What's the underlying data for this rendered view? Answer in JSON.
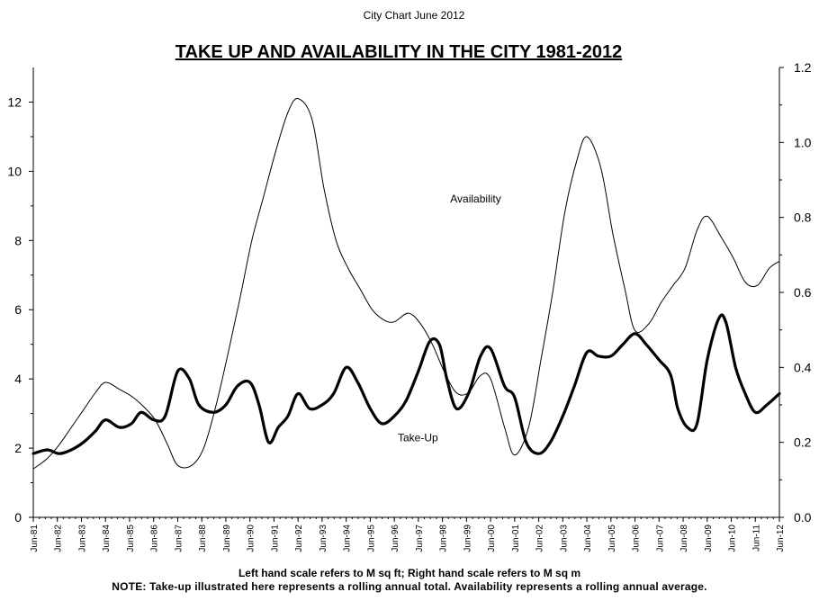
{
  "chart_header": "City Chart June 2012",
  "chart_data": {
    "type": "line",
    "title": "TAKE UP AND AVAILABILITY IN THE CITY 1981-2012",
    "y_left": {
      "ylim": [
        0,
        13
      ],
      "ticks": [
        0,
        2,
        4,
        6,
        8,
        10,
        12
      ]
    },
    "y_right": {
      "ylim": [
        0,
        1.2
      ],
      "ticks": [
        "0.0",
        "0.2",
        "0.4",
        "0.6",
        "0.8",
        "1.0",
        "1.2"
      ]
    },
    "x_range": [
      1981.42,
      2012.42
    ],
    "x_tick_labels": [
      "Jun-81",
      "Jun-82",
      "Jun-83",
      "Jun-84",
      "Jun-85",
      "Jun-86",
      "Jun-87",
      "Jun-88",
      "Jun-89",
      "Jun-90",
      "Jun-91",
      "Jun-92",
      "Jun-93",
      "Jun-94",
      "Jun-95",
      "Jun-96",
      "Jun-97",
      "Jun-98",
      "Jun-99",
      "Jun-00",
      "Jun-01",
      "Jun-02",
      "Jun-03",
      "Jun-04",
      "Jun-05",
      "Jun-06",
      "Jun-07",
      "Jun-08",
      "Jun-09",
      "Jun-10",
      "Jun-11",
      "Jun-12"
    ],
    "grid": false,
    "series": [
      {
        "name": "Availability",
        "axis": "left",
        "style": "thin",
        "points": [
          [
            1981.42,
            1.4
          ],
          [
            1982.0,
            1.7
          ],
          [
            1982.5,
            2.1
          ],
          [
            1983.0,
            2.6
          ],
          [
            1983.5,
            3.1
          ],
          [
            1984.0,
            3.6
          ],
          [
            1984.42,
            3.9
          ],
          [
            1985.0,
            3.7
          ],
          [
            1985.5,
            3.5
          ],
          [
            1986.0,
            3.2
          ],
          [
            1986.5,
            2.8
          ],
          [
            1987.0,
            2.1
          ],
          [
            1987.42,
            1.5
          ],
          [
            1988.0,
            1.5
          ],
          [
            1988.5,
            2.0
          ],
          [
            1989.0,
            3.2
          ],
          [
            1989.5,
            4.7
          ],
          [
            1990.0,
            6.3
          ],
          [
            1990.5,
            8.0
          ],
          [
            1991.0,
            9.3
          ],
          [
            1991.5,
            10.6
          ],
          [
            1992.0,
            11.7
          ],
          [
            1992.42,
            12.1
          ],
          [
            1993.0,
            11.5
          ],
          [
            1993.5,
            9.5
          ],
          [
            1994.0,
            8.0
          ],
          [
            1994.5,
            7.2
          ],
          [
            1995.0,
            6.6
          ],
          [
            1995.5,
            6.0
          ],
          [
            1996.0,
            5.7
          ],
          [
            1996.42,
            5.65
          ],
          [
            1997.0,
            5.9
          ],
          [
            1997.5,
            5.6
          ],
          [
            1998.0,
            5.0
          ],
          [
            1998.5,
            4.2
          ],
          [
            1999.0,
            3.6
          ],
          [
            1999.5,
            3.6
          ],
          [
            2000.0,
            4.1
          ],
          [
            2000.42,
            4.0
          ],
          [
            2001.0,
            2.6
          ],
          [
            2001.42,
            1.8
          ],
          [
            2002.0,
            2.6
          ],
          [
            2002.5,
            4.5
          ],
          [
            2003.0,
            6.5
          ],
          [
            2003.5,
            8.8
          ],
          [
            2004.0,
            10.3
          ],
          [
            2004.42,
            11.0
          ],
          [
            2005.0,
            10.1
          ],
          [
            2005.5,
            8.2
          ],
          [
            2006.0,
            6.6
          ],
          [
            2006.42,
            5.4
          ],
          [
            2007.0,
            5.6
          ],
          [
            2007.5,
            6.2
          ],
          [
            2008.0,
            6.7
          ],
          [
            2008.5,
            7.2
          ],
          [
            2009.0,
            8.3
          ],
          [
            2009.42,
            8.7
          ],
          [
            2010.0,
            8.1
          ],
          [
            2010.5,
            7.5
          ],
          [
            2011.0,
            6.8
          ],
          [
            2011.5,
            6.7
          ],
          [
            2012.0,
            7.2
          ],
          [
            2012.42,
            7.4
          ]
        ]
      },
      {
        "name": "Take-Up",
        "axis": "right",
        "style": "thick",
        "points": [
          [
            1981.42,
            0.17
          ],
          [
            1982.0,
            0.18
          ],
          [
            1982.5,
            0.17
          ],
          [
            1983.0,
            0.18
          ],
          [
            1983.5,
            0.2
          ],
          [
            1984.0,
            0.23
          ],
          [
            1984.42,
            0.26
          ],
          [
            1985.0,
            0.24
          ],
          [
            1985.5,
            0.25
          ],
          [
            1985.9,
            0.28
          ],
          [
            1986.42,
            0.26
          ],
          [
            1986.9,
            0.27
          ],
          [
            1987.42,
            0.39
          ],
          [
            1987.9,
            0.37
          ],
          [
            1988.3,
            0.3
          ],
          [
            1988.9,
            0.28
          ],
          [
            1989.42,
            0.3
          ],
          [
            1989.9,
            0.35
          ],
          [
            1990.42,
            0.36
          ],
          [
            1990.8,
            0.3
          ],
          [
            1991.2,
            0.2
          ],
          [
            1991.6,
            0.24
          ],
          [
            1992.0,
            0.27
          ],
          [
            1992.42,
            0.33
          ],
          [
            1992.9,
            0.29
          ],
          [
            1993.42,
            0.3
          ],
          [
            1993.9,
            0.33
          ],
          [
            1994.42,
            0.4
          ],
          [
            1994.9,
            0.36
          ],
          [
            1995.42,
            0.29
          ],
          [
            1995.9,
            0.25
          ],
          [
            1996.42,
            0.27
          ],
          [
            1996.9,
            0.31
          ],
          [
            1997.42,
            0.39
          ],
          [
            1997.9,
            0.47
          ],
          [
            1998.3,
            0.46
          ],
          [
            1998.6,
            0.37
          ],
          [
            1999.0,
            0.29
          ],
          [
            1999.5,
            0.33
          ],
          [
            2000.0,
            0.43
          ],
          [
            2000.42,
            0.45
          ],
          [
            2001.0,
            0.35
          ],
          [
            2001.42,
            0.32
          ],
          [
            2001.9,
            0.2
          ],
          [
            2002.42,
            0.17
          ],
          [
            2002.9,
            0.2
          ],
          [
            2003.42,
            0.27
          ],
          [
            2003.9,
            0.35
          ],
          [
            2004.42,
            0.44
          ],
          [
            2004.9,
            0.43
          ],
          [
            2005.42,
            0.43
          ],
          [
            2005.9,
            0.46
          ],
          [
            2006.42,
            0.49
          ],
          [
            2006.9,
            0.46
          ],
          [
            2007.42,
            0.42
          ],
          [
            2007.9,
            0.38
          ],
          [
            2008.2,
            0.29
          ],
          [
            2008.6,
            0.24
          ],
          [
            2009.0,
            0.25
          ],
          [
            2009.42,
            0.42
          ],
          [
            2009.9,
            0.53
          ],
          [
            2010.2,
            0.52
          ],
          [
            2010.6,
            0.4
          ],
          [
            2011.0,
            0.33
          ],
          [
            2011.42,
            0.28
          ],
          [
            2011.9,
            0.3
          ],
          [
            2012.42,
            0.33
          ]
        ]
      }
    ],
    "annotations": [
      {
        "text": "Availability",
        "x": 1999.8,
        "y": 9.1,
        "axis": "left"
      },
      {
        "text": "Take-Up",
        "x": 1997.4,
        "y": 2.2,
        "axis": "left"
      }
    ]
  },
  "notes": {
    "line1": "Left hand scale refers to M sq ft; Right hand scale refers to M sq m",
    "line2": "NOTE: Take-up illustrated here represents a rolling annual total. Availability represents a rolling annual average."
  }
}
